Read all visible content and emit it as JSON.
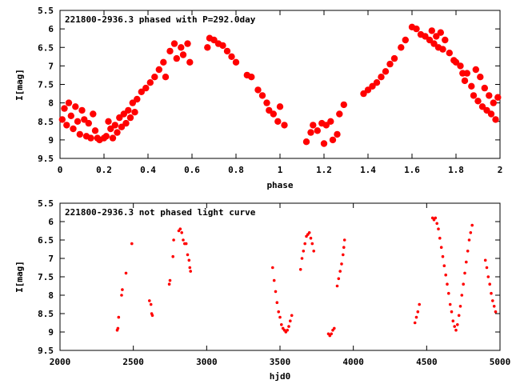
{
  "chart_data": [
    {
      "type": "scatter",
      "title": "221800-2936.3 phased with P=292.0day",
      "xlabel": "phase",
      "ylabel": "I[mag]",
      "xlim": [
        0,
        2
      ],
      "ylim": [
        9.5,
        5.5
      ],
      "y_inverted": true,
      "grid": false,
      "marker_color": "#ff0000",
      "marker": "filled-circle",
      "xticks": [
        "0",
        "0.2",
        "0.4",
        "0.6",
        "0.8",
        "1",
        "1.2",
        "1.4",
        "1.6",
        "1.8",
        "2"
      ],
      "yticks": [
        "5.5",
        "6",
        "6.5",
        "7",
        "7.5",
        "8",
        "8.5",
        "9",
        "9.5"
      ],
      "series": [
        {
          "points": [
            [
              0.01,
              8.45
            ],
            [
              0.02,
              8.15
            ],
            [
              0.03,
              8.6
            ],
            [
              0.04,
              8.0
            ],
            [
              0.05,
              8.35
            ],
            [
              0.06,
              8.7
            ],
            [
              0.07,
              8.1
            ],
            [
              0.08,
              8.5
            ],
            [
              0.09,
              8.85
            ],
            [
              0.1,
              8.2
            ],
            [
              0.11,
              8.45
            ],
            [
              0.12,
              8.9
            ],
            [
              0.13,
              8.55
            ],
            [
              0.14,
              8.95
            ],
            [
              0.15,
              8.3
            ],
            [
              0.16,
              8.75
            ],
            [
              0.17,
              8.95
            ],
            [
              0.18,
              9.0
            ],
            [
              0.2,
              8.95
            ],
            [
              0.21,
              8.9
            ],
            [
              0.22,
              8.5
            ],
            [
              0.23,
              8.7
            ],
            [
              0.24,
              8.95
            ],
            [
              0.25,
              8.6
            ],
            [
              0.26,
              8.8
            ],
            [
              0.27,
              8.4
            ],
            [
              0.28,
              8.65
            ],
            [
              0.29,
              8.3
            ],
            [
              0.3,
              8.55
            ],
            [
              0.31,
              8.2
            ],
            [
              0.32,
              8.4
            ],
            [
              0.33,
              8.0
            ],
            [
              0.34,
              8.25
            ],
            [
              0.35,
              7.9
            ],
            [
              0.37,
              7.7
            ],
            [
              0.39,
              7.6
            ],
            [
              0.41,
              7.45
            ],
            [
              0.43,
              7.3
            ],
            [
              0.45,
              7.1
            ],
            [
              0.47,
              6.9
            ],
            [
              0.48,
              7.3
            ],
            [
              0.5,
              6.6
            ],
            [
              0.52,
              6.4
            ],
            [
              0.53,
              6.8
            ],
            [
              0.55,
              6.5
            ],
            [
              0.56,
              6.7
            ],
            [
              0.58,
              6.4
            ],
            [
              0.59,
              6.9
            ],
            [
              0.67,
              6.5
            ],
            [
              0.68,
              6.25
            ],
            [
              0.7,
              6.3
            ],
            [
              0.72,
              6.4
            ],
            [
              0.74,
              6.45
            ],
            [
              0.76,
              6.6
            ],
            [
              0.78,
              6.75
            ],
            [
              0.8,
              6.9
            ],
            [
              0.85,
              7.25
            ],
            [
              0.87,
              7.3
            ],
            [
              0.9,
              7.65
            ],
            [
              0.92,
              7.8
            ],
            [
              0.94,
              8.0
            ],
            [
              0.95,
              8.2
            ],
            [
              0.97,
              8.3
            ],
            [
              0.99,
              8.5
            ],
            [
              1.0,
              8.1
            ],
            [
              1.02,
              8.6
            ],
            [
              1.12,
              9.05
            ],
            [
              1.14,
              8.8
            ],
            [
              1.15,
              8.6
            ],
            [
              1.17,
              8.75
            ],
            [
              1.19,
              8.55
            ],
            [
              1.2,
              9.1
            ],
            [
              1.21,
              8.6
            ],
            [
              1.23,
              8.5
            ],
            [
              1.24,
              9.0
            ],
            [
              1.26,
              8.85
            ],
            [
              1.27,
              8.3
            ],
            [
              1.29,
              8.05
            ],
            [
              1.38,
              7.75
            ],
            [
              1.4,
              7.65
            ],
            [
              1.42,
              7.55
            ],
            [
              1.44,
              7.45
            ],
            [
              1.46,
              7.3
            ],
            [
              1.48,
              7.15
            ],
            [
              1.5,
              6.95
            ],
            [
              1.52,
              6.8
            ],
            [
              1.55,
              6.5
            ],
            [
              1.57,
              6.3
            ],
            [
              1.6,
              5.95
            ],
            [
              1.62,
              6.0
            ],
            [
              1.64,
              6.15
            ],
            [
              1.66,
              6.2
            ],
            [
              1.68,
              6.3
            ],
            [
              1.69,
              6.05
            ],
            [
              1.7,
              6.4
            ],
            [
              1.71,
              6.2
            ],
            [
              1.72,
              6.5
            ],
            [
              1.73,
              6.1
            ],
            [
              1.74,
              6.55
            ],
            [
              1.75,
              6.3
            ],
            [
              1.77,
              6.65
            ],
            [
              1.79,
              6.85
            ],
            [
              1.8,
              6.9
            ],
            [
              1.82,
              7.0
            ],
            [
              1.83,
              7.2
            ],
            [
              1.84,
              7.4
            ],
            [
              1.85,
              7.2
            ],
            [
              1.87,
              7.55
            ],
            [
              1.88,
              7.8
            ],
            [
              1.89,
              7.1
            ],
            [
              1.9,
              7.95
            ],
            [
              1.91,
              7.3
            ],
            [
              1.92,
              8.1
            ],
            [
              1.93,
              7.6
            ],
            [
              1.94,
              8.2
            ],
            [
              1.95,
              7.8
            ],
            [
              1.96,
              8.3
            ],
            [
              1.97,
              8.0
            ],
            [
              1.98,
              8.45
            ],
            [
              1.99,
              7.85
            ]
          ]
        }
      ]
    },
    {
      "type": "scatter",
      "title": "221800-2936.3 not phased light curve",
      "xlabel": "hjd0",
      "ylabel": "I[mag]",
      "xlim": [
        2000,
        5000
      ],
      "ylim": [
        9.5,
        5.5
      ],
      "y_inverted": true,
      "grid": false,
      "marker_color": "#ff0000",
      "marker": "small-dot",
      "xticks": [
        "2000",
        "2500",
        "3000",
        "3500",
        "4000",
        "4500",
        "5000"
      ],
      "yticks": [
        "5.5",
        "6",
        "6.5",
        "7",
        "7.5",
        "8",
        "8.5",
        "9",
        "9.5"
      ],
      "series": [
        {
          "points": [
            [
              2390,
              8.95
            ],
            [
              2395,
              8.9
            ],
            [
              2400,
              8.6
            ],
            [
              2420,
              8.0
            ],
            [
              2425,
              7.85
            ],
            [
              2450,
              7.4
            ],
            [
              2490,
              6.6
            ],
            [
              2610,
              8.15
            ],
            [
              2620,
              8.25
            ],
            [
              2625,
              8.5
            ],
            [
              2630,
              8.55
            ],
            [
              2745,
              7.7
            ],
            [
              2750,
              7.6
            ],
            [
              2770,
              6.95
            ],
            [
              2775,
              6.5
            ],
            [
              2810,
              6.25
            ],
            [
              2820,
              6.2
            ],
            [
              2830,
              6.3
            ],
            [
              2840,
              6.5
            ],
            [
              2850,
              6.6
            ],
            [
              2860,
              6.6
            ],
            [
              2870,
              6.9
            ],
            [
              2880,
              7.05
            ],
            [
              2885,
              7.25
            ],
            [
              2890,
              7.35
            ],
            [
              3450,
              7.25
            ],
            [
              3460,
              7.6
            ],
            [
              3470,
              7.9
            ],
            [
              3480,
              8.2
            ],
            [
              3490,
              8.45
            ],
            [
              3500,
              8.6
            ],
            [
              3510,
              8.8
            ],
            [
              3520,
              8.9
            ],
            [
              3530,
              8.95
            ],
            [
              3540,
              9.0
            ],
            [
              3550,
              8.95
            ],
            [
              3560,
              8.85
            ],
            [
              3570,
              8.7
            ],
            [
              3580,
              8.55
            ],
            [
              3640,
              7.3
            ],
            [
              3650,
              7.0
            ],
            [
              3660,
              6.8
            ],
            [
              3670,
              6.6
            ],
            [
              3680,
              6.4
            ],
            [
              3690,
              6.35
            ],
            [
              3700,
              6.3
            ],
            [
              3710,
              6.45
            ],
            [
              3720,
              6.6
            ],
            [
              3730,
              6.8
            ],
            [
              3830,
              9.05
            ],
            [
              3840,
              9.1
            ],
            [
              3850,
              9.05
            ],
            [
              3860,
              8.95
            ],
            [
              3870,
              8.9
            ],
            [
              3890,
              7.75
            ],
            [
              3900,
              7.55
            ],
            [
              3910,
              7.35
            ],
            [
              3920,
              7.15
            ],
            [
              3930,
              6.9
            ],
            [
              3935,
              6.7
            ],
            [
              3940,
              6.5
            ],
            [
              4420,
              8.75
            ],
            [
              4430,
              8.6
            ],
            [
              4440,
              8.45
            ],
            [
              4450,
              8.25
            ],
            [
              4540,
              5.9
            ],
            [
              4550,
              5.95
            ],
            [
              4560,
              5.9
            ],
            [
              4570,
              6.05
            ],
            [
              4580,
              6.2
            ],
            [
              4590,
              6.45
            ],
            [
              4600,
              6.7
            ],
            [
              4610,
              6.95
            ],
            [
              4620,
              7.2
            ],
            [
              4630,
              7.45
            ],
            [
              4640,
              7.7
            ],
            [
              4650,
              7.95
            ],
            [
              4660,
              8.25
            ],
            [
              4670,
              8.45
            ],
            [
              4680,
              8.7
            ],
            [
              4690,
              8.85
            ],
            [
              4700,
              8.95
            ],
            [
              4710,
              8.8
            ],
            [
              4720,
              8.55
            ],
            [
              4730,
              8.3
            ],
            [
              4740,
              8.0
            ],
            [
              4750,
              7.7
            ],
            [
              4760,
              7.4
            ],
            [
              4770,
              7.1
            ],
            [
              4780,
              6.8
            ],
            [
              4790,
              6.5
            ],
            [
              4800,
              6.3
            ],
            [
              4810,
              6.1
            ],
            [
              4900,
              7.05
            ],
            [
              4910,
              7.25
            ],
            [
              4920,
              7.5
            ],
            [
              4930,
              7.7
            ],
            [
              4940,
              7.95
            ],
            [
              4950,
              8.15
            ],
            [
              4960,
              8.3
            ],
            [
              4970,
              8.45
            ]
          ]
        }
      ]
    }
  ]
}
